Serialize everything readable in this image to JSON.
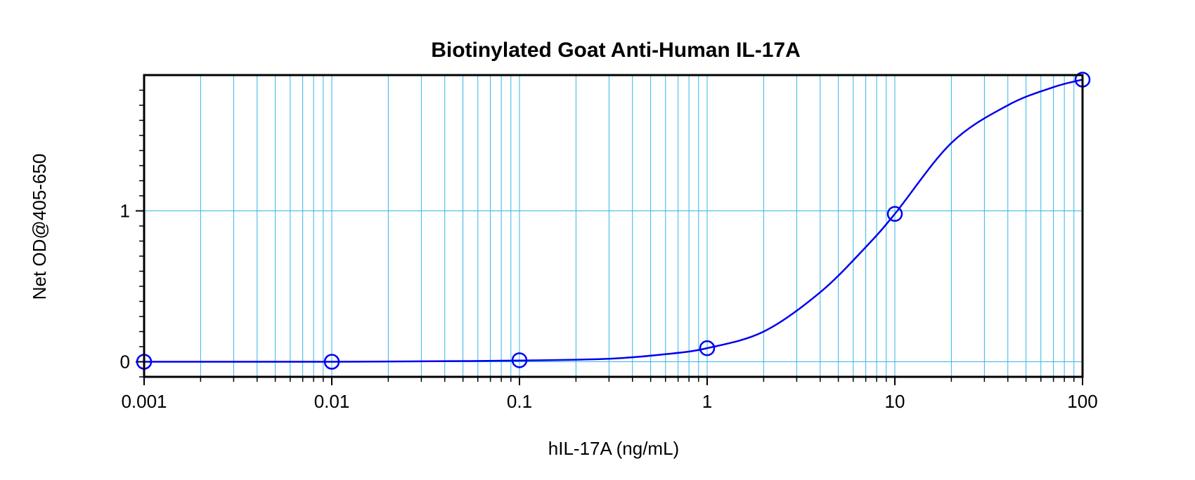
{
  "chart_data": {
    "type": "line",
    "title": "Biotinylated Goat Anti-Human IL-17A",
    "xlabel": "hIL-17A (ng/mL)",
    "ylabel": "Net OD@405-650",
    "x_scale": "log",
    "xlim": [
      0.001,
      100
    ],
    "ylim": [
      -0.1,
      1.9
    ],
    "grid": true,
    "x_tick_labels": [
      "0.001",
      "0.01",
      "0.1",
      "1",
      "10",
      "100"
    ],
    "y_tick_labels": [
      "0",
      "1"
    ],
    "series": [
      {
        "points": [
          {
            "x": 0.001,
            "y": 0.0
          },
          {
            "x": 0.01,
            "y": 0.0
          },
          {
            "x": 0.1,
            "y": 0.01
          },
          {
            "x": 1,
            "y": 0.09
          },
          {
            "x": 10,
            "y": 0.98
          },
          {
            "x": 100,
            "y": 1.87
          }
        ]
      }
    ],
    "fit_curve": [
      {
        "x": 0.001,
        "y": 0.0
      },
      {
        "x": 0.01,
        "y": 0.0
      },
      {
        "x": 0.03,
        "y": 0.003
      },
      {
        "x": 0.1,
        "y": 0.008
      },
      {
        "x": 0.3,
        "y": 0.02
      },
      {
        "x": 0.6,
        "y": 0.05
      },
      {
        "x": 1,
        "y": 0.09
      },
      {
        "x": 2,
        "y": 0.2
      },
      {
        "x": 4,
        "y": 0.46
      },
      {
        "x": 7,
        "y": 0.76
      },
      {
        "x": 10,
        "y": 0.98
      },
      {
        "x": 20,
        "y": 1.45
      },
      {
        "x": 40,
        "y": 1.7
      },
      {
        "x": 70,
        "y": 1.82
      },
      {
        "x": 100,
        "y": 1.87
      }
    ],
    "colors": {
      "series": "#0000ee",
      "grid": "#33b5e5",
      "frame": "#000000"
    }
  }
}
